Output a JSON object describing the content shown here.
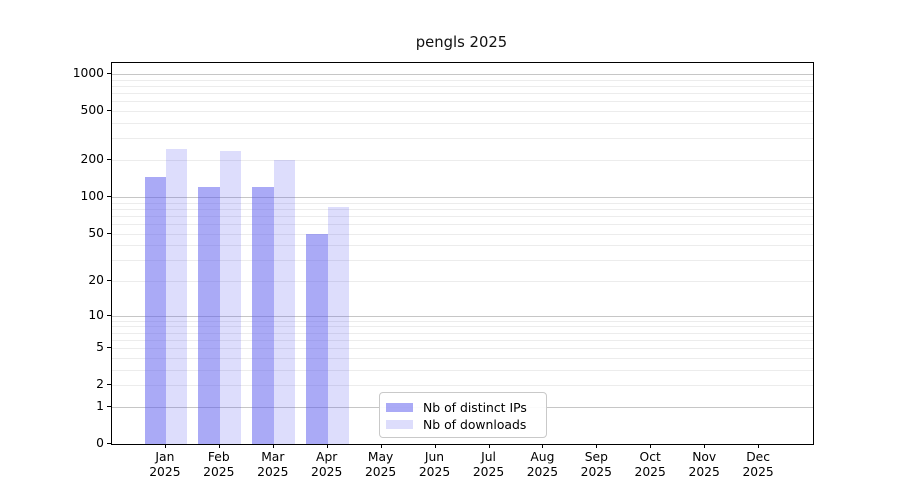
{
  "chart_data": {
    "type": "bar",
    "title": "pengls 2025",
    "categories": [
      "Jan",
      "Feb",
      "Mar",
      "Apr",
      "May",
      "Jun",
      "Jul",
      "Aug",
      "Sep",
      "Oct",
      "Nov",
      "Dec"
    ],
    "category_year": "2025",
    "series": [
      {
        "name": "Nb of distinct IPs",
        "color": "rgba(85,85,238,0.5)",
        "values": [
          145,
          120,
          120,
          50,
          null,
          null,
          null,
          null,
          null,
          null,
          null,
          null
        ]
      },
      {
        "name": "Nb of downloads",
        "color": "rgba(85,85,238,0.2)",
        "values": [
          245,
          235,
          200,
          83,
          null,
          null,
          null,
          null,
          null,
          null,
          null,
          null
        ]
      }
    ],
    "y_scale": "log10(1+v)",
    "y_ticks": [
      0,
      1,
      2,
      5,
      10,
      20,
      50,
      100,
      200,
      500,
      1000
    ],
    "y_major_gridlines": [
      1,
      10,
      100,
      1000
    ],
    "ylim": [
      0,
      1240
    ],
    "xlabel": "",
    "ylabel": "",
    "grid": true,
    "legend_position": "lower center",
    "colors": {
      "major_grid": "#c6c6c6",
      "minor_grid": "#ececec",
      "spine": "#000000",
      "text": "#000000",
      "background": "#ffffff"
    }
  }
}
